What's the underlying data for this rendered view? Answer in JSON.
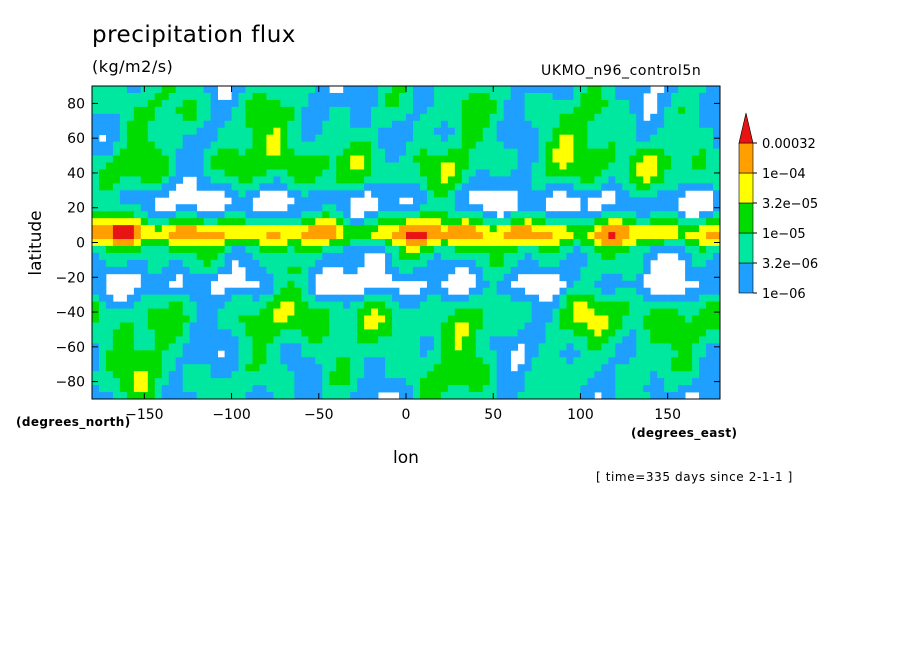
{
  "chart_data": {
    "type": "heatmap",
    "title": "precipitation flux",
    "units": "(kg/m2/s)",
    "dataset": "UKMO_n96_control5n",
    "xlabel": "lon",
    "ylabel": "latitude",
    "x_unit": "(degrees_east)",
    "y_unit": "(degrees_north)",
    "time_info": "[ time=335 days since 2-1-1 ]",
    "xlim": [
      -180,
      180
    ],
    "ylim": [
      -90,
      90
    ],
    "x_ticks": [
      -150,
      -100,
      -50,
      0,
      50,
      100,
      150
    ],
    "y_ticks": [
      80,
      60,
      40,
      20,
      0,
      -20,
      -40,
      -60,
      -80
    ],
    "colorbar": {
      "levels": [
        "1e-06",
        "3.2e-06",
        "1e-05",
        "3.2e-05",
        "1e-04",
        "0.00032"
      ],
      "colors": [
        "#ffffff",
        "#1f9fff",
        "#00e8a0",
        "#00dc00",
        "#ffff00",
        "#ffa000",
        "#e81414"
      ]
    }
  }
}
